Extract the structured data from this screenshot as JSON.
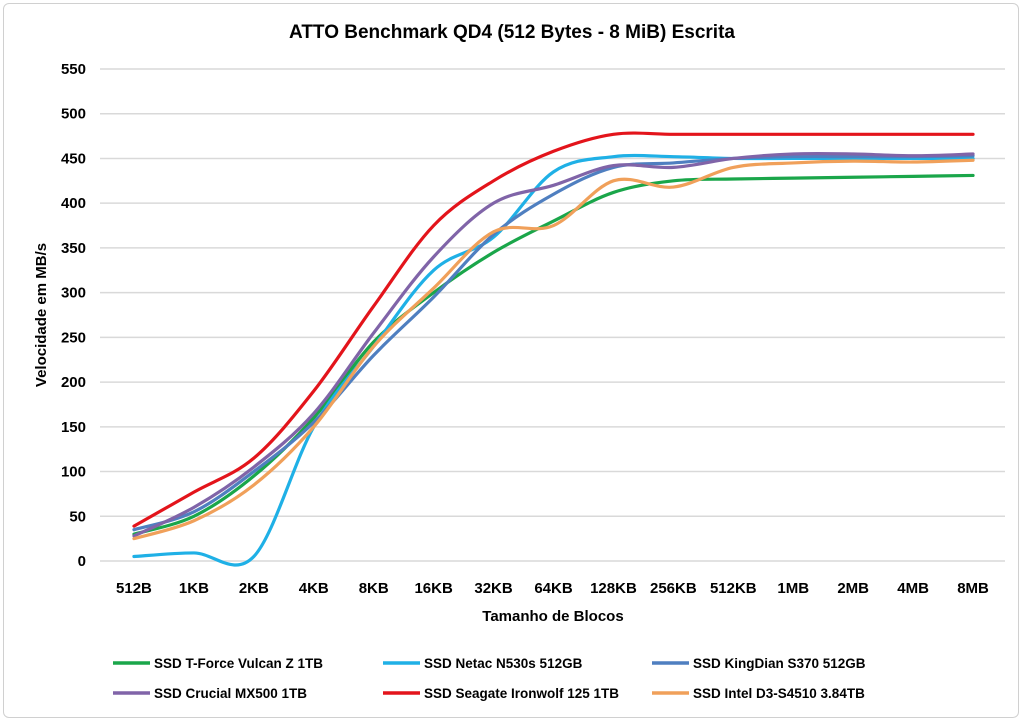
{
  "chart_data": {
    "type": "line",
    "title": "ATTO Benchmark QD4 (512 Bytes - 8 MiB) Escrita",
    "xlabel": "Tamanho de Blocos",
    "ylabel": "Velocidade em MB/s",
    "ylim": [
      0,
      550
    ],
    "yticks": [
      0,
      50,
      100,
      150,
      200,
      250,
      300,
      350,
      400,
      450,
      500,
      550
    ],
    "grid": true,
    "smoothed": true,
    "legend_placement": "bottom",
    "categories": [
      "512B",
      "1KB",
      "2KB",
      "4KB",
      "8KB",
      "16KB",
      "32KB",
      "64KB",
      "128KB",
      "256KB",
      "512KB",
      "1MB",
      "2MB",
      "4MB",
      "8MB"
    ],
    "series": [
      {
        "name": "SSD T-Force Vulcan Z 1TB",
        "color": "#1aa64a",
        "values": [
          30,
          50,
          95,
          160,
          245,
          300,
          345,
          380,
          412,
          425,
          427,
          428,
          429,
          430,
          431
        ]
      },
      {
        "name": "SSD Netac N530s 512GB",
        "color": "#1fb0e6",
        "values": [
          5,
          9,
          5,
          150,
          240,
          325,
          362,
          435,
          452,
          452,
          450,
          450,
          450,
          450,
          450
        ]
      },
      {
        "name": "SSD KingDian S370 512GB",
        "color": "#4f7fc0",
        "values": [
          35,
          55,
          100,
          155,
          230,
          295,
          365,
          410,
          440,
          445,
          450,
          452,
          452,
          452,
          453
        ]
      },
      {
        "name": "SSD Crucial MX500 1TB",
        "color": "#8064a8",
        "values": [
          28,
          60,
          105,
          165,
          255,
          340,
          400,
          420,
          442,
          440,
          450,
          455,
          455,
          453,
          455
        ]
      },
      {
        "name": "SSD Seagate Ironwolf 125 1TB",
        "color": "#e3141b",
        "values": [
          39,
          77,
          115,
          190,
          285,
          375,
          425,
          458,
          477,
          477,
          477,
          477,
          477,
          477,
          477
        ]
      },
      {
        "name": "SSD Intel D3-S4510 3.84TB",
        "color": "#f0a05a",
        "values": [
          25,
          45,
          85,
          150,
          240,
          305,
          368,
          375,
          425,
          418,
          440,
          445,
          447,
          446,
          448
        ]
      }
    ]
  }
}
